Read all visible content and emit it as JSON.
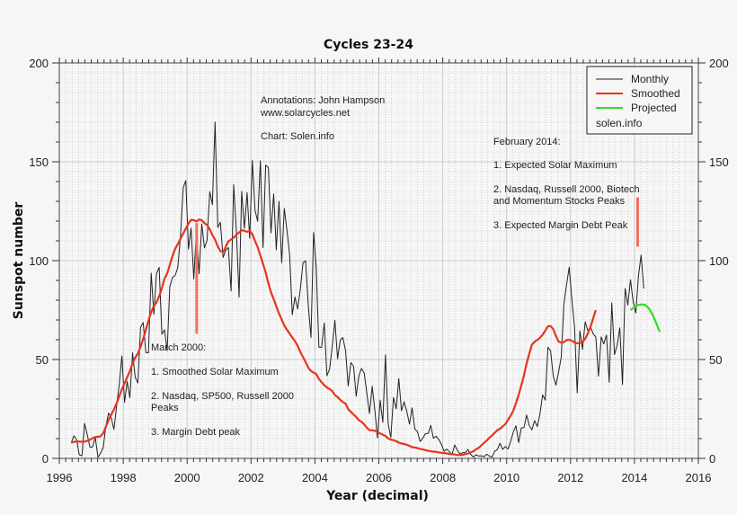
{
  "chart_data": {
    "type": "line",
    "title": "Cycles 23-24",
    "xlabel": "Year (decimal)",
    "ylabel": "Sunspot number",
    "xlim": [
      1996,
      2016
    ],
    "ylim": [
      0,
      200
    ],
    "x_ticks": [
      "1996",
      "1998",
      "2000",
      "2002",
      "2004",
      "2006",
      "2008",
      "2010",
      "2012",
      "2014",
      "2016"
    ],
    "x_tick_values": [
      1996,
      1998,
      2000,
      2002,
      2004,
      2006,
      2008,
      2010,
      2012,
      2014,
      2016
    ],
    "y_ticks": [
      "0",
      "50",
      "100",
      "150",
      "200"
    ],
    "y_tick_values": [
      0,
      50,
      100,
      150,
      200
    ],
    "grid": true,
    "legend": {
      "placement": "top-right",
      "entries": [
        {
          "label": "Monthly",
          "color": "#222222"
        },
        {
          "label": "Smoothed",
          "color": "#e8341c"
        },
        {
          "label": "Projected",
          "color": "#33dd22"
        }
      ],
      "footer": "solen.info"
    },
    "series": [
      {
        "name": "Monthly",
        "color": "#222222",
        "x_start": 1996.375,
        "x_step": 0.0833333,
        "values": [
          8.0,
          11.4,
          9.4,
          1.8,
          1.3,
          17.7,
          11.9,
          5.7,
          5.8,
          10.6,
          0.5,
          2.6,
          5.7,
          16.4,
          22.9,
          20.6,
          14.6,
          26.2,
          37.5,
          51.8,
          28.3,
          38.9,
          30.7,
          53.4,
          41.1,
          38.2,
          66.3,
          68.7,
          53.5,
          53.4,
          93.7,
          72.9,
          93.4,
          96.6,
          62.8,
          65.0,
          54.5,
          86.7,
          91.5,
          92.5,
          96.5,
          112.2,
          136.8,
          140.5,
          105.8,
          116.4,
          90.8,
          115.2,
          93.4,
          118.5,
          106.4,
          110.4,
          134.9,
          128.3,
          170.1,
          116.8,
          119.4,
          101.6,
          105.3,
          106.6,
          84.6,
          138.4,
          114.7,
          81.6,
          135.0,
          116.3,
          134.4,
          111.3,
          150.7,
          125.5,
          119.9,
          150.5,
          106.6,
          148.3,
          147.1,
          114.1,
          133.8,
          105.5,
          130.0,
          98.9,
          126.4,
          115.3,
          102.7,
          72.6,
          81.6,
          75.6,
          85.4,
          98.9,
          99.9,
          77.3,
          61.1,
          114.2,
          96.1,
          56.2,
          56.2,
          68.5,
          41.8,
          45.1,
          56.9,
          69.8,
          50.3,
          59.8,
          61.1,
          54.4,
          36.7,
          48.4,
          46.6,
          31.4,
          41.8,
          45.5,
          43.2,
          32.8,
          22.7,
          36.5,
          24.2,
          10.3,
          29.4,
          18.2,
          52.4,
          17.3,
          10.6,
          30.8,
          25.1,
          40.3,
          24.1,
          28.6,
          23.8,
          17.3,
          25.6,
          14.8,
          13.6,
          8.5,
          10.2,
          12.5,
          12.6,
          16.7,
          10.2,
          11.2,
          9.6,
          7.1,
          3.6,
          4.7,
          3.3,
          2.0,
          6.8,
          4.1,
          2.2,
          2.9,
          2.9,
          4.5,
          2.0,
          0.7,
          1.8,
          1.2,
          1.3,
          0.8,
          2.1,
          1.2,
          0.6,
          3.6,
          4.4,
          7.7,
          4.5,
          6.0,
          4.7,
          8.5,
          13.3,
          16.5,
          8.0,
          15.4,
          15.6,
          21.9,
          16.6,
          14.4,
          19.1,
          16.1,
          22.3,
          32.1,
          29.5,
          56.2,
          54.4,
          41.8,
          37.0,
          43.7,
          51.0,
          78.0,
          88.0,
          96.7,
          80.1,
          66.8,
          33.1,
          64.5,
          55.2,
          69.0,
          64.5,
          66.5,
          63.0,
          61.4,
          41.6,
          61.4,
          57.9,
          62.4,
          38.5,
          78.7,
          52.5,
          57.0,
          66.0,
          37.3,
          85.9,
          77.6,
          90.3,
          79.4,
          73.5,
          92.0,
          102.8,
          85.9
        ]
      },
      {
        "name": "Smoothed",
        "color": "#e8341c",
        "x_start": 1996.375,
        "x_step": 0.0833333,
        "values": [
          8.0,
          8.3,
          8.6,
          8.5,
          8.4,
          8.5,
          8.8,
          9.4,
          10.2,
          10.8,
          10.9,
          11.2,
          12.8,
          16.0,
          19.5,
          22.2,
          24.7,
          27.8,
          31.4,
          35.0,
          38.0,
          41.0,
          44.2,
          48.0,
          50.9,
          53.0,
          56.4,
          60.5,
          65.0,
          69.7,
          74.0,
          77.0,
          78.9,
          82.0,
          86.1,
          90.8,
          93.5,
          97.8,
          102.3,
          106.0,
          108.3,
          111.0,
          113.7,
          116.2,
          118.8,
          120.6,
          120.5,
          119.8,
          120.8,
          120.4,
          119.0,
          118.0,
          115.8,
          113.0,
          110.6,
          107.2,
          104.8,
          104.3,
          107.0,
          109.8,
          110.7,
          111.6,
          113.2,
          114.2,
          115.4,
          115.1,
          114.6,
          115.0,
          113.4,
          110.0,
          106.8,
          102.6,
          98.4,
          94.0,
          88.6,
          84.0,
          80.5,
          77.0,
          73.3,
          70.2,
          67.2,
          65.0,
          63.1,
          61.1,
          59.3,
          57.0,
          53.8,
          51.3,
          48.7,
          45.9,
          44.2,
          43.4,
          42.7,
          40.2,
          38.5,
          37.0,
          35.9,
          35.1,
          34.0,
          32.0,
          31.0,
          29.6,
          28.5,
          27.7,
          24.9,
          23.5,
          22.2,
          20.9,
          19.3,
          18.5,
          17.2,
          15.4,
          14.3,
          14.2,
          14.0,
          13.2,
          12.6,
          12.0,
          11.3,
          10.1,
          9.5,
          9.2,
          8.7,
          8.0,
          7.5,
          7.3,
          6.9,
          6.3,
          5.7,
          5.5,
          5.2,
          4.8,
          4.5,
          4.2,
          3.8,
          3.6,
          3.4,
          3.3,
          3.0,
          2.8,
          2.7,
          2.5,
          2.2,
          2.1,
          2.0,
          1.7,
          1.7,
          1.8,
          2.2,
          2.4,
          3.0,
          3.6,
          4.6,
          5.3,
          6.6,
          7.8,
          9.0,
          10.4,
          11.5,
          13.0,
          14.2,
          15.0,
          16.2,
          17.3,
          19.4,
          21.6,
          24.1,
          28.0,
          32.0,
          36.8,
          42.0,
          48.0,
          53.0,
          57.5,
          59.0,
          59.9,
          61.0,
          62.5,
          64.6,
          66.8,
          66.9,
          65.4,
          61.9,
          59.1,
          58.5,
          58.8,
          59.8,
          60.0,
          59.5,
          58.7,
          58.2,
          58.3,
          58.9,
          60.5,
          63.2,
          66.5,
          70.8,
          75.0
        ]
      },
      {
        "name": "Projected",
        "color": "#33dd22",
        "x_start": 2013.875,
        "x_step": 0.0833333,
        "values": [
          75.0,
          76.0,
          77.0,
          77.6,
          77.8,
          77.8,
          77.2,
          75.7,
          73.5,
          70.6,
          67.3,
          64.0
        ]
      }
    ],
    "annotations": [
      {
        "lines": [
          "Annotations: John Hampson",
          "www.solarcycles.net",
          "",
          "Chart: Solen.info"
        ]
      },
      {
        "lines": [
          "March 2000:",
          "",
          "1. Smoothed Solar Maximum",
          "",
          "2. Nasdaq, SP500, Russell 2000",
          "Peaks",
          "",
          "3. Margin Debt peak"
        ]
      },
      {
        "lines": [
          "February 2014:",
          "",
          "1. Expected Solar Maximum",
          "",
          "2. Nasdaq, Russell 2000, Biotech",
          "and Momentum Stocks Peaks",
          "",
          "3. Expected Margin Debt Peak"
        ]
      }
    ],
    "markers": [
      {
        "name": "march-2000-marker",
        "x": 2000.3,
        "y_from": 63,
        "y_to": 119,
        "color": "#f07060"
      },
      {
        "name": "february-2014-marker",
        "x": 2014.1,
        "y_from": 107,
        "y_to": 132,
        "color": "#f07060"
      }
    ]
  }
}
